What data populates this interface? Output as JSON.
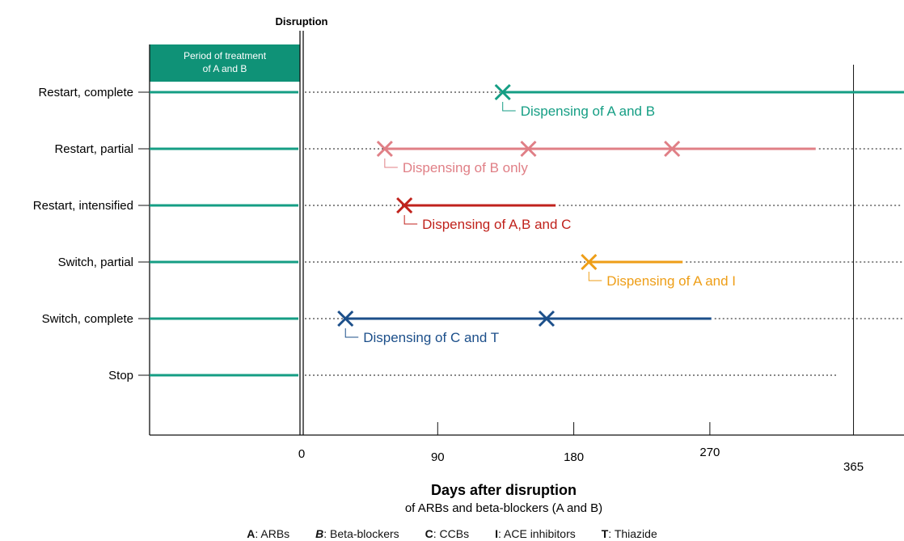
{
  "disruption_label": "Disruption",
  "period_box": {
    "line1": "Period of treatment",
    "line2": "of A and B"
  },
  "x_axis": {
    "title": "Days after disruption",
    "subtitle": "of ARBs and beta-blockers (A and B)",
    "ticks": [
      {
        "value": 0,
        "label": "0"
      },
      {
        "value": 90,
        "label": "90"
      },
      {
        "value": 180,
        "label": "180"
      },
      {
        "value": 270,
        "label": "270"
      },
      {
        "value": 365,
        "label": "365"
      }
    ]
  },
  "colors": {
    "teal": "#159e84",
    "pink": "#e07f86",
    "red": "#c0221c",
    "orange": "#ee9e17",
    "blue": "#1c4f8a",
    "box": "#0f9277"
  },
  "rows": [
    {
      "label": "Restart, complete",
      "color": "#159e84",
      "x_marks": [
        133
      ],
      "line_start": 133,
      "line_end": 400,
      "dots_end": null,
      "annotation": "Dispensing of A and B"
    },
    {
      "label": "Restart, partial",
      "color": "#e07f86",
      "x_marks": [
        55,
        150,
        245
      ],
      "line_start": 55,
      "line_end": 340,
      "dots_end": 400,
      "annotation": "Dispensing of B only"
    },
    {
      "label": "Restart, intensified",
      "color": "#c0221c",
      "x_marks": [
        68
      ],
      "line_start": 68,
      "line_end": 168,
      "dots_end": 400,
      "annotation": "Dispensing of A,B and C"
    },
    {
      "label": "Switch, partial",
      "color": "#ee9e17",
      "x_marks": [
        190
      ],
      "line_start": 190,
      "line_end": 252,
      "dots_end": 400,
      "annotation": "Dispensing of A and I"
    },
    {
      "label": "Switch, complete",
      "color": "#1c4f8a",
      "x_marks": [
        29,
        162
      ],
      "line_start": 29,
      "line_end": 271,
      "dots_end": 400,
      "annotation": "Dispensing of C and T"
    },
    {
      "label": "Stop",
      "color": null,
      "x_marks": [],
      "line_start": null,
      "line_end": null,
      "dots_end": 355,
      "annotation": ""
    }
  ],
  "legend": [
    {
      "key": "A",
      "text": ": ARBs"
    },
    {
      "key": "B",
      "text": ": Beta-blockers"
    },
    {
      "key": "C",
      "text": ": CCBs"
    },
    {
      "key": "I",
      "text": ": ACE inhibitors"
    },
    {
      "key": "T",
      "text": ": Thiazide"
    }
  ]
}
